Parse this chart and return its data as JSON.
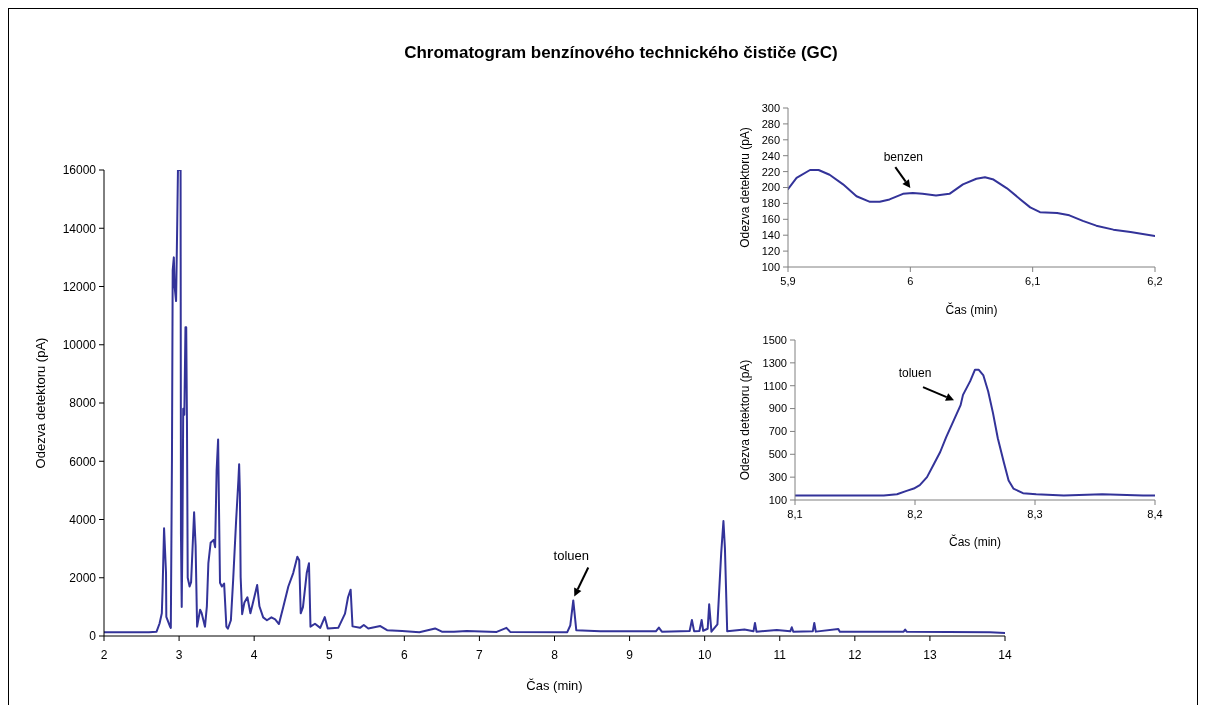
{
  "chart_data": [
    {
      "type": "line",
      "title": "Chromatogram benzínového technického čističe (GC)",
      "xlabel": "Čas (min)",
      "ylabel": "Odezva detektoru (pA)",
      "x": [
        2,
        2.6,
        2.7,
        2.74,
        2.77,
        2.78,
        2.8,
        2.826,
        2.83,
        2.88,
        2.89,
        2.905,
        2.915,
        2.93,
        2.94,
        2.96,
        2.976,
        2.985,
        3.02,
        3.025,
        3.035,
        3.045,
        3.055,
        3.07,
        3.085,
        3.095,
        3.105,
        3.115,
        3.14,
        3.16,
        3.2,
        3.22,
        3.24,
        3.28,
        3.3,
        3.345,
        3.37,
        3.39,
        3.42,
        3.46,
        3.48,
        3.5,
        3.52,
        3.53,
        3.545,
        3.57,
        3.6,
        3.63,
        3.65,
        3.69,
        3.72,
        3.76,
        3.79,
        3.8,
        3.81,
        3.82,
        3.84,
        3.87,
        3.91,
        3.95,
        3.98,
        4.04,
        4.07,
        4.12,
        4.17,
        4.23,
        4.28,
        4.33,
        4.39,
        4.455,
        4.52,
        4.575,
        4.6,
        4.62,
        4.65,
        4.7,
        4.73,
        4.75,
        4.81,
        4.88,
        4.94,
        4.98,
        5.12,
        5.21,
        5.25,
        5.285,
        5.31,
        5.41,
        5.46,
        5.52,
        5.68,
        5.77,
        5.97,
        6.2,
        6.41,
        6.5,
        6.66,
        6.83,
        7.23,
        7.36,
        7.41,
        8.17,
        8.21,
        8.25,
        8.29,
        8.61,
        9.35,
        9.39,
        9.43,
        9.8,
        9.83,
        9.86,
        9.93,
        9.96,
        9.98,
        10.04,
        10.06,
        10.09,
        10.17,
        10.22,
        10.25,
        10.27,
        10.3,
        10.53,
        10.65,
        10.67,
        10.69,
        10.96,
        11.14,
        11.16,
        11.18,
        11.44,
        11.46,
        11.48,
        11.78,
        11.8,
        12.65,
        12.67,
        12.69,
        13.8,
        14
      ],
      "series": [
        {
          "color": "#333399",
          "values": [
            130,
            130,
            150,
            430,
            780,
            1580,
            3700,
            2160,
            660,
            320,
            280,
            6040,
            12560,
            13000,
            12000,
            11500,
            14280,
            16000,
            16000,
            3500,
            1000,
            3500,
            7800,
            7600,
            10600,
            10600,
            7300,
            2000,
            1700,
            1850,
            4250,
            3100,
            320,
            900,
            790,
            320,
            1020,
            2500,
            3200,
            3300,
            3050,
            5700,
            6750,
            4700,
            1830,
            1700,
            1800,
            320,
            250,
            540,
            1920,
            3980,
            5350,
            5900,
            4900,
            2020,
            750,
            1150,
            1330,
            780,
            1100,
            1750,
            1020,
            640,
            540,
            640,
            570,
            410,
            1020,
            1700,
            2160,
            2720,
            2600,
            780,
            990,
            2160,
            2500,
            320,
            420,
            280,
            650,
            260,
            280,
            770,
            1330,
            1590,
            330,
            280,
            380,
            260,
            340,
            200,
            170,
            130,
            260,
            150,
            150,
            170,
            140,
            280,
            140,
            130,
            360,
            1220,
            200,
            160,
            160,
            290,
            150,
            170,
            550,
            160,
            170,
            550,
            180,
            250,
            1090,
            150,
            400,
            2840,
            3950,
            3000,
            160,
            220,
            160,
            450,
            150,
            210,
            160,
            300,
            150,
            160,
            450,
            150,
            240,
            150,
            150,
            220,
            150,
            130,
            100
          ]
        }
      ],
      "xlim": [
        2,
        14
      ],
      "xticks": [
        2,
        3,
        4,
        5,
        6,
        7,
        8,
        9,
        10,
        11,
        12,
        13,
        14
      ],
      "ylim": [
        0,
        16000
      ],
      "yticks": [
        0,
        2000,
        4000,
        6000,
        8000,
        10000,
        12000,
        14000,
        16000
      ],
      "annotations": [
        {
          "text": "toluen",
          "x": 8.25,
          "y": 1220
        }
      ]
    },
    {
      "type": "line",
      "xlabel": "Čas (min)",
      "ylabel": "Odezva detektoru (pA)",
      "x": [
        5.9,
        5.907,
        5.918,
        5.925,
        5.934,
        5.945,
        5.956,
        5.967,
        5.975,
        5.983,
        5.994,
        6.002,
        6.01,
        6.021,
        6.032,
        6.043,
        6.054,
        6.061,
        6.068,
        6.079,
        6.09,
        6.098,
        6.106,
        6.12,
        6.13,
        6.141,
        6.152,
        6.166,
        6.18,
        6.2
      ],
      "series": [
        {
          "color": "#333399",
          "values": [
            198,
            212,
            222,
            222,
            216,
            204,
            189,
            182,
            182,
            185,
            192,
            193,
            192,
            190,
            192,
            204,
            211,
            213,
            210,
            199,
            185,
            175,
            169,
            168,
            165,
            158,
            152,
            147,
            144,
            139
          ]
        }
      ],
      "xlim": [
        5.9,
        6.2
      ],
      "xticks": [
        {
          "value": 5.9,
          "label": "5,9"
        },
        6,
        {
          "value": 6.1,
          "label": "6,1"
        },
        {
          "value": 6.2,
          "label": "6,2"
        }
      ],
      "ylim": [
        100,
        300
      ],
      "yticks": [
        100,
        120,
        140,
        160,
        180,
        200,
        220,
        240,
        260,
        280,
        300
      ],
      "annotations": [
        {
          "text": "benzen",
          "x": 6.0,
          "y": 193
        }
      ]
    },
    {
      "type": "line",
      "xlabel": "Čas (min)",
      "ylabel": "Odezva detektoru (pA)",
      "x": [
        8.1,
        8.174,
        8.185,
        8.193,
        8.199,
        8.204,
        8.21,
        8.215,
        8.221,
        8.226,
        8.232,
        8.238,
        8.24,
        8.246,
        8.25,
        8.253,
        8.257,
        8.261,
        8.265,
        8.269,
        8.274,
        8.278,
        8.282,
        8.29,
        8.301,
        8.324,
        8.356,
        8.39,
        8.4
      ],
      "series": [
        {
          "color": "#333399",
          "values": [
            140,
            140,
            150,
            180,
            200,
            230,
            300,
            400,
            520,
            650,
            790,
            930,
            1020,
            1140,
            1240,
            1240,
            1190,
            1050,
            860,
            640,
            430,
            270,
            200,
            160,
            150,
            140,
            150,
            140,
            140
          ]
        }
      ],
      "xlim": [
        8.1,
        8.4
      ],
      "xticks": [
        {
          "value": 8.1,
          "label": "8,1"
        },
        {
          "value": 8.2,
          "label": "8,2"
        },
        {
          "value": 8.3,
          "label": "8,3"
        },
        {
          "value": 8.4,
          "label": "8,4"
        }
      ],
      "ylim": [
        100,
        1500
      ],
      "yticks": [
        100,
        300,
        500,
        700,
        900,
        1100,
        1300,
        1500
      ],
      "annotations": [
        {
          "text": "toluen",
          "x": 8.23,
          "y": 1000
        }
      ]
    }
  ]
}
